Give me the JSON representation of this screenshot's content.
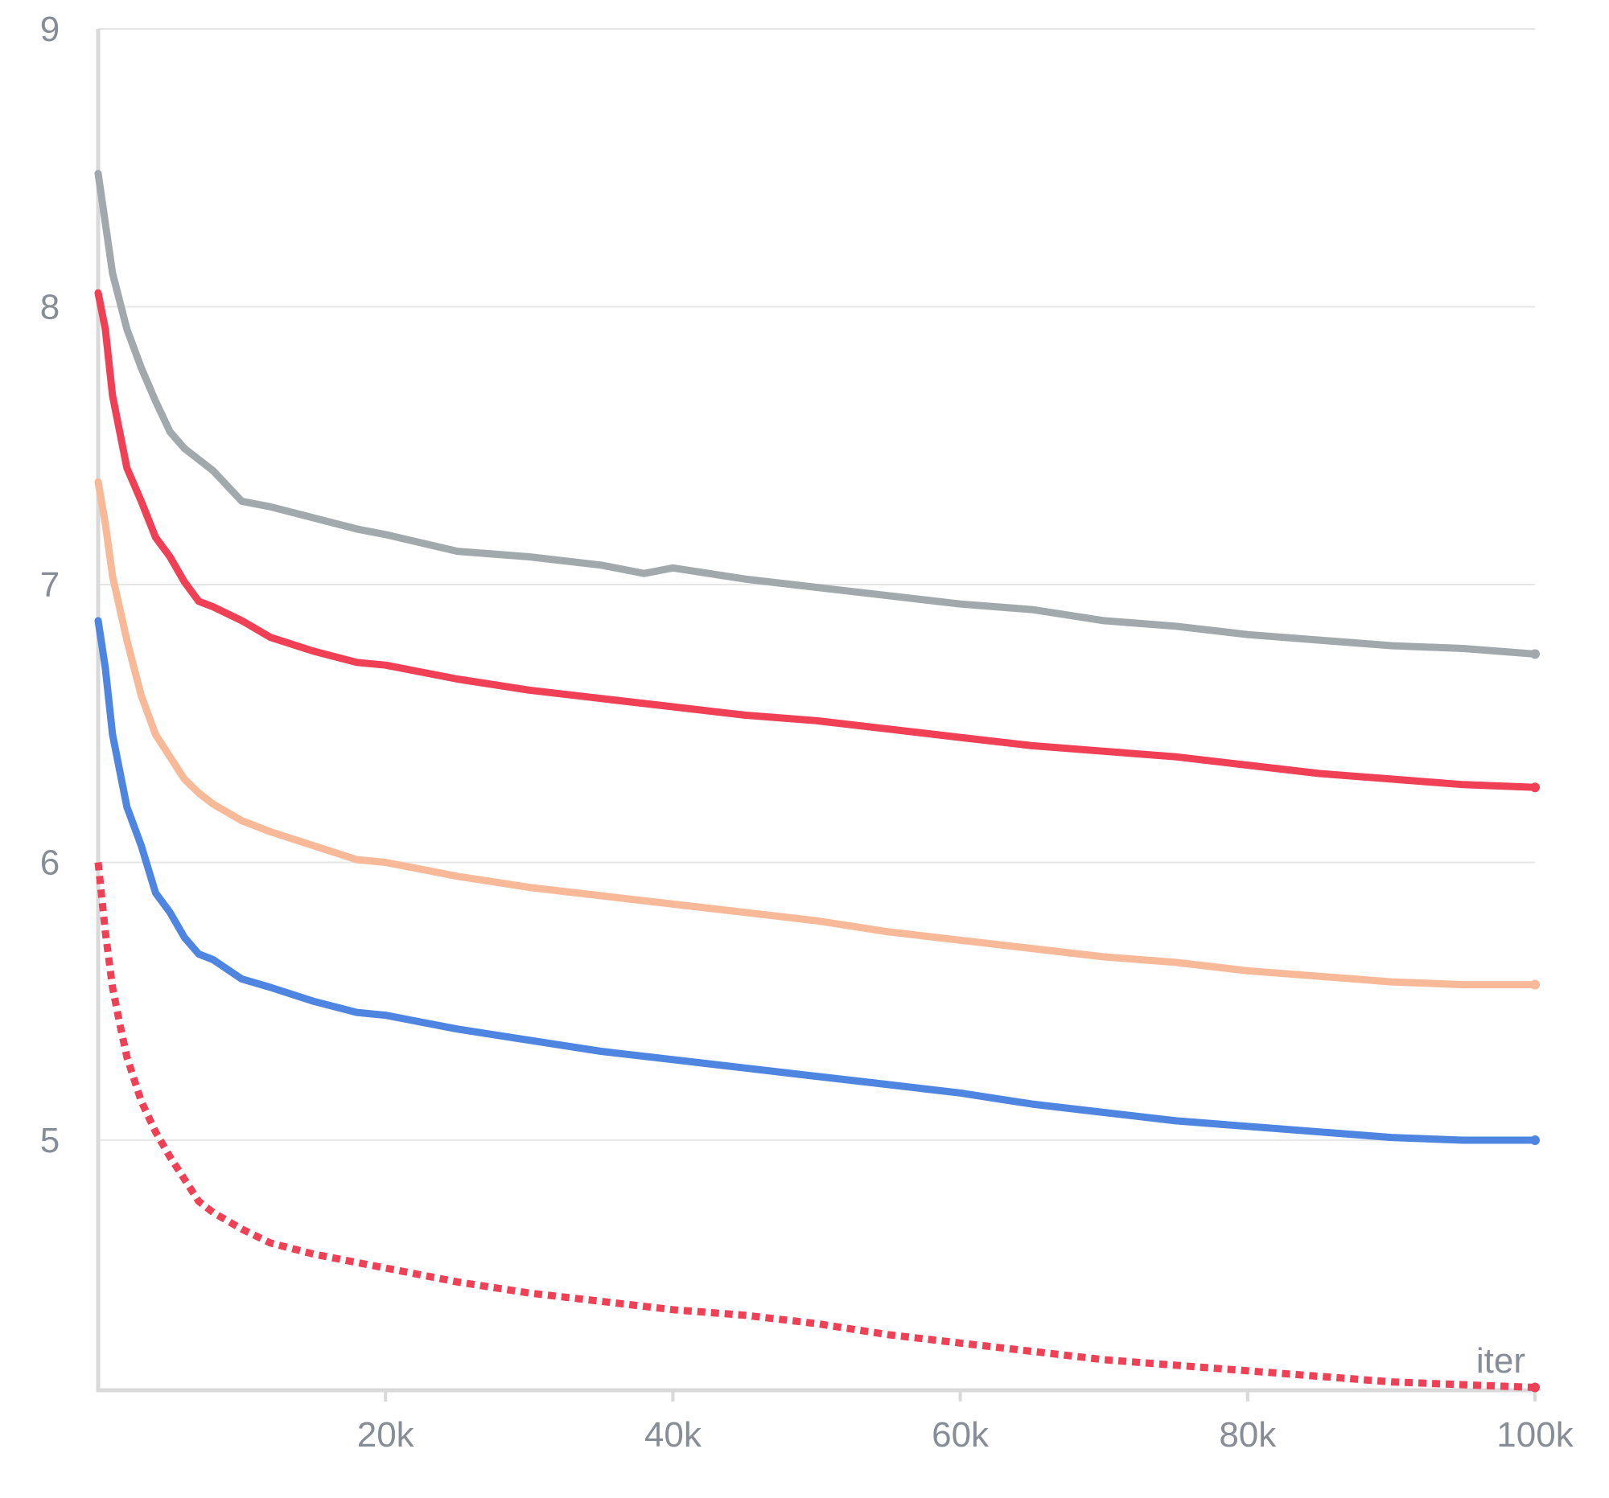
{
  "chart_data": {
    "type": "line",
    "xlabel": "iter",
    "ylabel": "",
    "title": "",
    "xlim": [
      0,
      100000
    ],
    "ylim": [
      4.1,
      9
    ],
    "grid": true,
    "legend": "none",
    "x_ticks": [
      {
        "value": 20000,
        "label": "20k"
      },
      {
        "value": 40000,
        "label": "40k"
      },
      {
        "value": 60000,
        "label": "60k"
      },
      {
        "value": 80000,
        "label": "80k"
      },
      {
        "value": 100000,
        "label": "100k"
      }
    ],
    "y_ticks": [
      {
        "value": 5,
        "label": "5"
      },
      {
        "value": 6,
        "label": "6"
      },
      {
        "value": 7,
        "label": "7"
      },
      {
        "value": 8,
        "label": "8"
      },
      {
        "value": 9,
        "label": "9"
      }
    ],
    "series": [
      {
        "color": "#a2a9ad",
        "style": "solid",
        "x": [
          0,
          1000,
          2000,
          3000,
          4000,
          5000,
          6000,
          7000,
          8000,
          10000,
          12000,
          15000,
          18000,
          20000,
          25000,
          30000,
          35000,
          38000,
          40000,
          45000,
          50000,
          55000,
          60000,
          65000,
          70000,
          75000,
          80000,
          85000,
          90000,
          95000,
          100000
        ],
        "values": [
          8.48,
          8.12,
          7.92,
          7.78,
          7.66,
          7.55,
          7.49,
          7.45,
          7.41,
          7.3,
          7.28,
          7.24,
          7.2,
          7.18,
          7.12,
          7.1,
          7.07,
          7.04,
          7.06,
          7.02,
          6.99,
          6.96,
          6.93,
          6.91,
          6.87,
          6.85,
          6.82,
          6.8,
          6.78,
          6.77,
          6.75
        ]
      },
      {
        "color": "#ef4055",
        "style": "solid",
        "x": [
          0,
          500,
          1000,
          2000,
          3000,
          4000,
          5000,
          6000,
          7000,
          8000,
          10000,
          12000,
          15000,
          18000,
          20000,
          25000,
          30000,
          35000,
          40000,
          45000,
          50000,
          55000,
          60000,
          65000,
          70000,
          75000,
          80000,
          85000,
          90000,
          95000,
          100000
        ],
        "values": [
          8.05,
          7.92,
          7.68,
          7.42,
          7.3,
          7.17,
          7.1,
          7.01,
          6.94,
          6.92,
          6.87,
          6.81,
          6.76,
          6.72,
          6.71,
          6.66,
          6.62,
          6.59,
          6.56,
          6.53,
          6.51,
          6.48,
          6.45,
          6.42,
          6.4,
          6.38,
          6.35,
          6.32,
          6.3,
          6.28,
          6.27
        ]
      },
      {
        "color": "#f8b999",
        "style": "solid",
        "x": [
          0,
          500,
          1000,
          2000,
          3000,
          4000,
          5000,
          6000,
          7000,
          8000,
          10000,
          12000,
          15000,
          18000,
          20000,
          25000,
          30000,
          35000,
          40000,
          45000,
          50000,
          55000,
          60000,
          65000,
          70000,
          75000,
          80000,
          85000,
          90000,
          95000,
          100000
        ],
        "values": [
          7.37,
          7.22,
          7.03,
          6.8,
          6.6,
          6.46,
          6.38,
          6.3,
          6.25,
          6.21,
          6.15,
          6.11,
          6.06,
          6.01,
          6.0,
          5.95,
          5.91,
          5.88,
          5.85,
          5.82,
          5.79,
          5.75,
          5.72,
          5.69,
          5.66,
          5.64,
          5.61,
          5.59,
          5.57,
          5.56,
          5.56
        ]
      },
      {
        "color": "#4e85e0",
        "style": "solid",
        "x": [
          0,
          500,
          1000,
          2000,
          3000,
          4000,
          5000,
          6000,
          7000,
          8000,
          10000,
          12000,
          15000,
          18000,
          20000,
          25000,
          30000,
          35000,
          40000,
          45000,
          50000,
          55000,
          60000,
          65000,
          70000,
          75000,
          80000,
          85000,
          90000,
          95000,
          100000
        ],
        "values": [
          6.87,
          6.7,
          6.46,
          6.2,
          6.06,
          5.89,
          5.82,
          5.73,
          5.67,
          5.65,
          5.58,
          5.55,
          5.5,
          5.46,
          5.45,
          5.4,
          5.36,
          5.32,
          5.29,
          5.26,
          5.23,
          5.2,
          5.17,
          5.13,
          5.1,
          5.07,
          5.05,
          5.03,
          5.01,
          5.0,
          5.0
        ]
      },
      {
        "color": "#ef4055",
        "style": "dashed",
        "x": [
          0,
          500,
          1000,
          1500,
          2000,
          3000,
          4000,
          5000,
          6000,
          7000,
          8000,
          10000,
          12000,
          15000,
          18000,
          20000,
          25000,
          30000,
          35000,
          40000,
          45000,
          50000,
          55000,
          60000,
          65000,
          70000,
          75000,
          80000,
          85000,
          90000,
          95000,
          100000
        ],
        "values": [
          6.0,
          5.75,
          5.55,
          5.42,
          5.3,
          5.14,
          5.03,
          4.94,
          4.86,
          4.78,
          4.74,
          4.68,
          4.63,
          4.59,
          4.56,
          4.54,
          4.49,
          4.45,
          4.42,
          4.39,
          4.37,
          4.34,
          4.3,
          4.27,
          4.24,
          4.21,
          4.19,
          4.17,
          4.15,
          4.13,
          4.12,
          4.11
        ]
      }
    ]
  }
}
